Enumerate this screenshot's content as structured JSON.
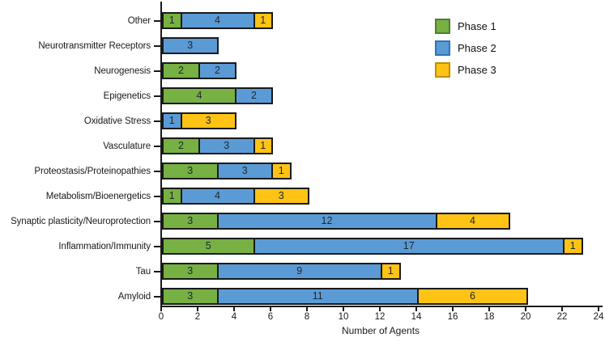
{
  "chart_data": {
    "type": "bar",
    "orientation": "horizontal-stacked",
    "title": "",
    "xlabel": "Number of Agents",
    "xlim": [
      0,
      24
    ],
    "xticks": [
      0,
      2,
      4,
      6,
      8,
      10,
      12,
      14,
      16,
      18,
      20,
      22,
      24
    ],
    "grid": false,
    "legend_position": "top-right",
    "bar_outline": "#1a1a1a",
    "value_label_color": "#1d2631",
    "categories": [
      "Other",
      "Neurotransmitter Receptors",
      "Neurogenesis",
      "Epigenetics",
      "Oxidative Stress",
      "Vasculature",
      "Proteostasis/Proteinopathies",
      "Metabolism/Bioenergetics",
      "Synaptic plasticity/Neuroprotection",
      "Inflammation/Immunity",
      "Tau",
      "Amyloid"
    ],
    "series": [
      {
        "name": "Phase 1",
        "color": "#77B043",
        "legend_border": "#507E32",
        "values": [
          1,
          0,
          2,
          4,
          0,
          2,
          3,
          1,
          3,
          5,
          3,
          3
        ]
      },
      {
        "name": "Phase 2",
        "color": "#5B9BD5",
        "legend_border": "#2E74B5",
        "values": [
          4,
          3,
          2,
          2,
          1,
          3,
          3,
          4,
          12,
          17,
          9,
          11
        ]
      },
      {
        "name": "Phase 3",
        "color": "#FFC316",
        "legend_border": "#BF9000",
        "values": [
          1,
          0,
          0,
          0,
          3,
          1,
          1,
          3,
          4,
          1,
          1,
          6
        ]
      }
    ]
  }
}
